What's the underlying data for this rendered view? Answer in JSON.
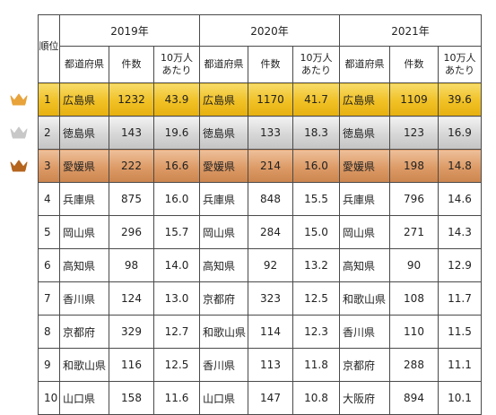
{
  "header": {
    "rank_label": "順位",
    "years": [
      "2019年",
      "2020年",
      "2021年"
    ],
    "sub_headers": [
      "都道府県",
      "件数",
      "10万人\nあたり"
    ]
  },
  "crowns": [
    {
      "name": "gold-crown-icon",
      "color": "#e8a33a"
    },
    {
      "name": "silver-crown-icon",
      "color": "#c8c8c8"
    },
    {
      "name": "bronze-crown-icon",
      "color": "#b5651d"
    }
  ],
  "rows": [
    {
      "rank": "1",
      "y2019": [
        "広島県",
        "1232",
        "43.9"
      ],
      "y2020": [
        "広島県",
        "1170",
        "41.7"
      ],
      "y2021": [
        "広島県",
        "1109",
        "39.6"
      ]
    },
    {
      "rank": "2",
      "y2019": [
        "徳島県",
        "143",
        "19.6"
      ],
      "y2020": [
        "徳島県",
        "133",
        "18.3"
      ],
      "y2021": [
        "徳島県",
        "123",
        "16.9"
      ]
    },
    {
      "rank": "3",
      "y2019": [
        "愛媛県",
        "222",
        "16.6"
      ],
      "y2020": [
        "愛媛県",
        "214",
        "16.0"
      ],
      "y2021": [
        "愛媛県",
        "198",
        "14.8"
      ]
    },
    {
      "rank": "4",
      "y2019": [
        "兵庫県",
        "875",
        "16.0"
      ],
      "y2020": [
        "兵庫県",
        "848",
        "15.5"
      ],
      "y2021": [
        "兵庫県",
        "796",
        "14.6"
      ]
    },
    {
      "rank": "5",
      "y2019": [
        "岡山県",
        "296",
        "15.7"
      ],
      "y2020": [
        "岡山県",
        "284",
        "15.0"
      ],
      "y2021": [
        "岡山県",
        "271",
        "14.3"
      ]
    },
    {
      "rank": "6",
      "y2019": [
        "高知県",
        "98",
        "14.0"
      ],
      "y2020": [
        "高知県",
        "92",
        "13.2"
      ],
      "y2021": [
        "高知県",
        "90",
        "12.9"
      ]
    },
    {
      "rank": "7",
      "y2019": [
        "香川県",
        "124",
        "13.0"
      ],
      "y2020": [
        "京都府",
        "323",
        "12.5"
      ],
      "y2021": [
        "和歌山県",
        "108",
        "11.7"
      ]
    },
    {
      "rank": "8",
      "y2019": [
        "京都府",
        "329",
        "12.7"
      ],
      "y2020": [
        "和歌山県",
        "114",
        "12.3"
      ],
      "y2021": [
        "香川県",
        "110",
        "11.5"
      ]
    },
    {
      "rank": "9",
      "y2019": [
        "和歌山県",
        "116",
        "12.5"
      ],
      "y2020": [
        "香川県",
        "113",
        "11.8"
      ],
      "y2021": [
        "京都府",
        "288",
        "11.1"
      ]
    },
    {
      "rank": "10",
      "y2019": [
        "山口県",
        "158",
        "11.6"
      ],
      "y2020": [
        "山口県",
        "147",
        "10.8"
      ],
      "y2021": [
        "大阪府",
        "894",
        "10.1"
      ]
    }
  ]
}
